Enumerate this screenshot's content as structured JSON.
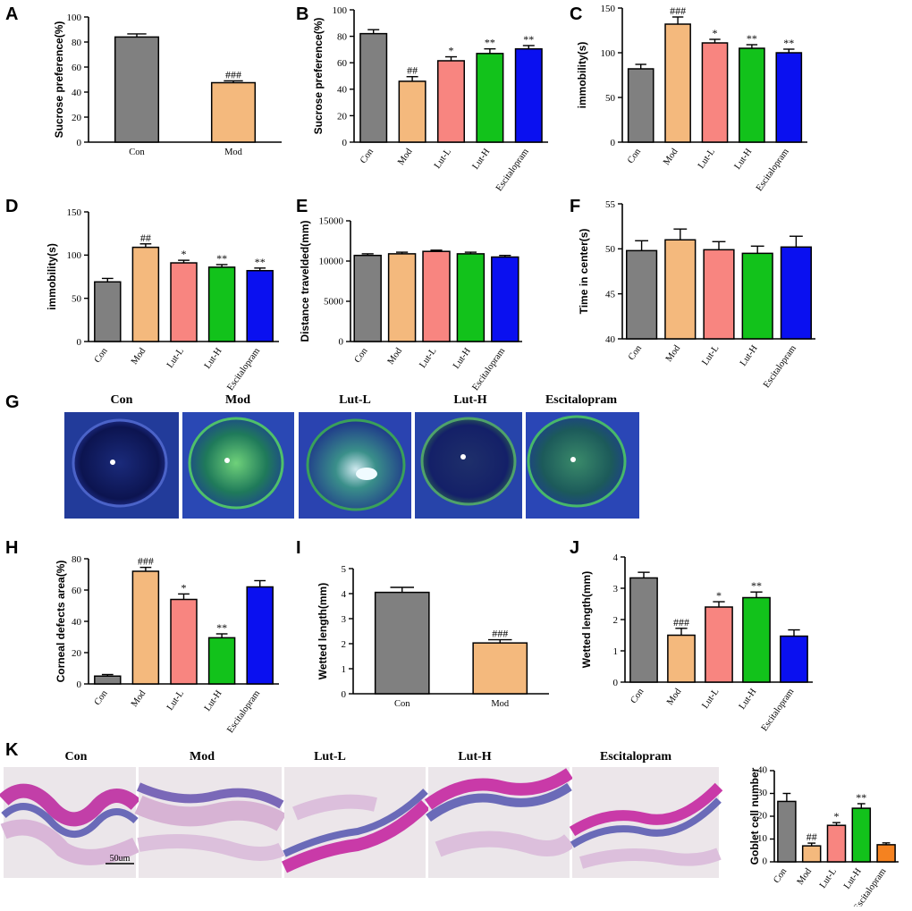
{
  "colors": {
    "Con": "#808080",
    "Mod": "#f4b97d",
    "Lut-L": "#f88580",
    "Lut-H": "#12c21b",
    "Escitalopram": "#0a10f0",
    "Escitalopram_K": "#f58220"
  },
  "scale_bar_label": "50um",
  "chart_data": [
    {
      "id": "A",
      "type": "bar",
      "categories": [
        "Con",
        "Mod"
      ],
      "values": [
        84,
        47.5
      ],
      "errors": [
        2.5,
        1.5
      ],
      "sig": [
        "",
        "###"
      ],
      "ylabel": "Sucrose preference(%)",
      "ylim": [
        0,
        100
      ],
      "yticks": [
        0,
        20,
        40,
        60,
        80,
        100
      ]
    },
    {
      "id": "B",
      "type": "bar",
      "categories": [
        "Con",
        "Mod",
        "Lut-L",
        "Lut-H",
        "Escitalopram"
      ],
      "values": [
        82,
        46,
        61.5,
        67,
        70.5
      ],
      "errors": [
        3,
        3.5,
        3,
        3.5,
        2.5
      ],
      "sig": [
        "",
        "##",
        "*",
        "**",
        "**"
      ],
      "ylabel": "Sucrose preference(%)",
      "ylim": [
        0,
        100
      ],
      "yticks": [
        0,
        20,
        40,
        60,
        80,
        100
      ]
    },
    {
      "id": "C",
      "type": "bar",
      "categories": [
        "Con",
        "Mod",
        "Lut-L",
        "Lut-H",
        "Escitalopram"
      ],
      "values": [
        82,
        132,
        111,
        105,
        100
      ],
      "errors": [
        5,
        8,
        4,
        4,
        4
      ],
      "sig": [
        "",
        "###",
        "*",
        "**",
        "**"
      ],
      "ylabel": "immobility(s)",
      "ylim": [
        0,
        150
      ],
      "yticks": [
        0,
        50,
        100,
        150
      ]
    },
    {
      "id": "D",
      "type": "bar",
      "categories": [
        "Con",
        "Mod",
        "Lut-L",
        "Lut-H",
        "Escitalopram"
      ],
      "values": [
        69,
        109,
        91,
        86,
        82
      ],
      "errors": [
        4,
        4,
        3,
        3,
        3
      ],
      "sig": [
        "",
        "##",
        "*",
        "**",
        "**"
      ],
      "ylabel": "immobility(s)",
      "ylim": [
        0,
        150
      ],
      "yticks": [
        0,
        50,
        100,
        150
      ]
    },
    {
      "id": "E",
      "type": "bar",
      "categories": [
        "Con",
        "Mod",
        "Lut-L",
        "Lut-H",
        "Escitalopram"
      ],
      "values": [
        10700,
        10900,
        11200,
        10900,
        10500
      ],
      "errors": [
        200,
        200,
        150,
        200,
        200
      ],
      "sig": [
        "",
        "",
        "",
        "",
        ""
      ],
      "ylabel": "Distance travelded(mm)",
      "ylim": [
        0,
        15000
      ],
      "yticks": [
        0,
        5000,
        10000,
        15000
      ]
    },
    {
      "id": "F",
      "type": "bar",
      "categories": [
        "Con",
        "Mod",
        "Lut-L",
        "Lut-H",
        "Escitalopram"
      ],
      "values": [
        49.8,
        51.0,
        49.9,
        49.5,
        50.2
      ],
      "errors": [
        1.1,
        1.2,
        0.9,
        0.8,
        1.2
      ],
      "sig": [
        "",
        "",
        "",
        "",
        ""
      ],
      "ylabel": "Time in center(s)",
      "ylim": [
        40,
        55
      ],
      "yticks": [
        40,
        45,
        50,
        55
      ]
    },
    {
      "id": "H",
      "type": "bar",
      "categories": [
        "Con",
        "Mod",
        "Lut-L",
        "Lut-H",
        "Escitalopram"
      ],
      "values": [
        5,
        72,
        54,
        29.5,
        62
      ],
      "errors": [
        1,
        2.5,
        3.5,
        2.5,
        4
      ],
      "sig": [
        "",
        "###",
        "*",
        "**",
        ""
      ],
      "ylabel": "Corneal defects area(%)",
      "ylim": [
        0,
        80
      ],
      "yticks": [
        0,
        20,
        40,
        60,
        80
      ]
    },
    {
      "id": "I",
      "type": "bar",
      "categories": [
        "Con",
        "Mod"
      ],
      "values": [
        4.05,
        2.03
      ],
      "errors": [
        0.2,
        0.13
      ],
      "sig": [
        "",
        "###"
      ],
      "ylabel": "Wetted length(mm)",
      "ylim": [
        0,
        5
      ],
      "yticks": [
        0,
        1,
        2,
        3,
        4,
        5
      ]
    },
    {
      "id": "J",
      "type": "bar",
      "categories": [
        "Con",
        "Mod",
        "Lut-L",
        "Lut-H",
        "Escitalopram"
      ],
      "values": [
        3.33,
        1.5,
        2.4,
        2.7,
        1.47
      ],
      "errors": [
        0.18,
        0.22,
        0.17,
        0.18,
        0.2
      ],
      "sig": [
        "",
        "###",
        "*",
        "**",
        ""
      ],
      "ylabel": "Wetted length(mm)",
      "ylim": [
        0,
        4
      ],
      "yticks": [
        0,
        1,
        2,
        3,
        4
      ]
    },
    {
      "id": "K",
      "type": "bar",
      "categories": [
        "Con",
        "Mod",
        "Lut-L",
        "Lut-H",
        "Escitalopram"
      ],
      "values": [
        26.5,
        7,
        16,
        23.5,
        7.5
      ],
      "errors": [
        3.5,
        1.2,
        1.2,
        2,
        0.8
      ],
      "sig": [
        "",
        "##",
        "*",
        "**",
        ""
      ],
      "ylabel": "Goblet cell number",
      "ylim": [
        0,
        40
      ],
      "yticks": [
        0,
        10,
        20,
        30,
        40
      ]
    }
  ],
  "image_panels": [
    {
      "id": "G",
      "labels": [
        "Con",
        "Mod",
        "Lut-L",
        "Lut-H",
        "Escitalopram"
      ]
    },
    {
      "id": "K",
      "labels": [
        "Con",
        "Mod",
        "Lut-L",
        "Lut-H",
        "Escitalopram"
      ]
    }
  ]
}
